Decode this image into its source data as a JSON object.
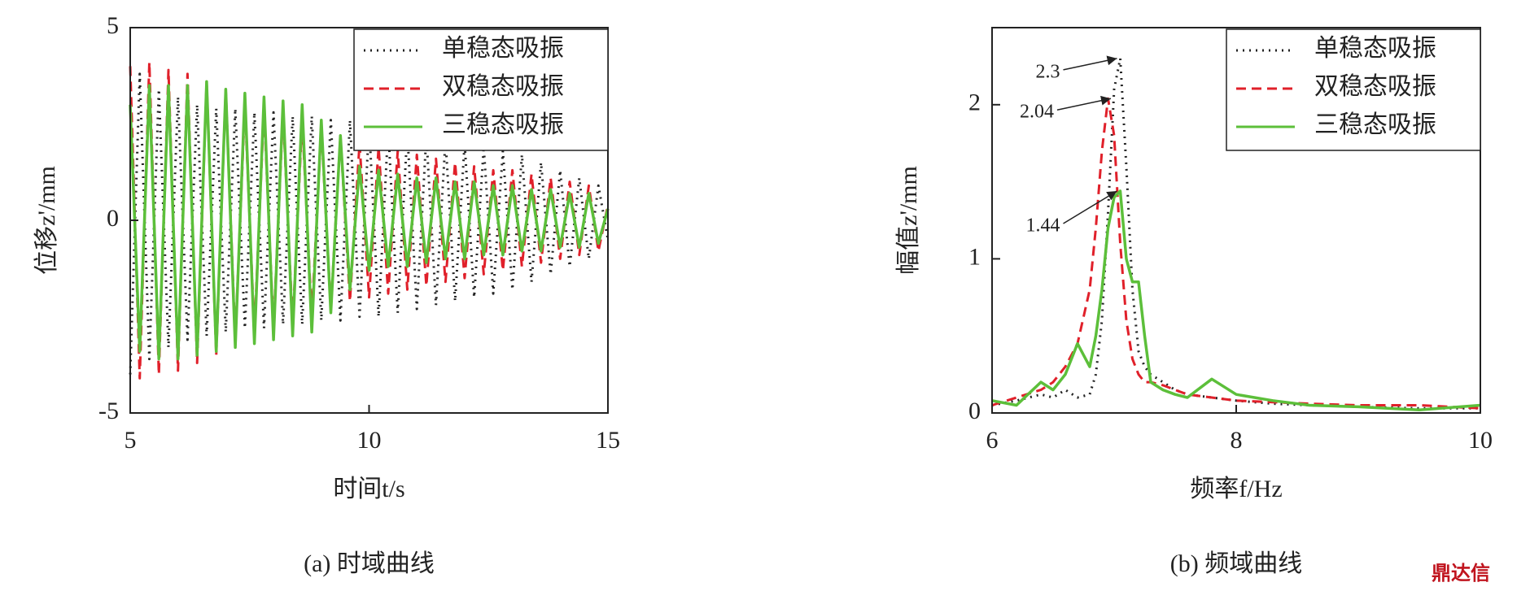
{
  "chart_data": [
    {
      "type": "line",
      "caption": "(a) 时域曲线",
      "xlabel": "时间t/s",
      "ylabel": "位移z'/mm",
      "xlim": [
        5,
        15
      ],
      "xticks": [
        5,
        10,
        15
      ],
      "ylim": [
        -5,
        5
      ],
      "yticks": [
        -5,
        0,
        5
      ],
      "legend": "upper right",
      "x": [
        5,
        5.2,
        5.4,
        5.6,
        5.8,
        6,
        6.2,
        6.4,
        6.6,
        6.8,
        7,
        7.2,
        7.4,
        7.6,
        7.8,
        8,
        8.2,
        8.4,
        8.6,
        8.8,
        9,
        9.2,
        9.4,
        9.6,
        9.8,
        10,
        10.2,
        10.4,
        10.6,
        10.8,
        11,
        11.2,
        11.4,
        11.6,
        11.8,
        12,
        12.2,
        12.4,
        12.6,
        12.8,
        13,
        13.2,
        13.4,
        13.6,
        13.8,
        14,
        14.2,
        14.4,
        14.6,
        14.8,
        15
      ],
      "series": [
        {
          "name": "单稳态吸振",
          "color": "#222222",
          "dash": "dotted",
          "values": [
            -4.0,
            3.8,
            -3.6,
            3.4,
            -3.3,
            3.2,
            -3.1,
            3.0,
            -3.0,
            2.9,
            -2.9,
            2.9,
            -2.8,
            2.8,
            -2.8,
            2.8,
            -2.7,
            2.7,
            -2.7,
            2.7,
            -2.6,
            2.6,
            -2.6,
            2.6,
            -2.5,
            2.5,
            -2.5,
            2.4,
            -2.4,
            2.3,
            -2.3,
            2.2,
            -2.2,
            2.1,
            -2.1,
            2.0,
            -2.0,
            1.9,
            -1.9,
            1.8,
            -1.8,
            1.7,
            -1.6,
            1.5,
            -1.4,
            1.3,
            -1.2,
            1.1,
            -1.0,
            0.9,
            -0.5
          ]
        },
        {
          "name": "双稳态吸振",
          "color": "#e0202a",
          "dash": "dashed",
          "values": [
            4.0,
            -4.1,
            4.1,
            -4.0,
            3.9,
            -3.9,
            3.8,
            -3.7,
            3.6,
            -3.5,
            3.4,
            -3.1,
            3.0,
            -2.9,
            2.9,
            -2.8,
            2.8,
            -2.7,
            2.6,
            -2.5,
            2.4,
            -2.3,
            2.2,
            -2.1,
            2.0,
            -2.0,
            1.9,
            -1.9,
            1.8,
            -1.8,
            1.7,
            -1.7,
            1.6,
            -1.6,
            1.5,
            -1.5,
            1.4,
            -1.4,
            1.3,
            -1.3,
            1.3,
            -1.2,
            1.2,
            -1.1,
            1.1,
            -1.0,
            1.0,
            -0.9,
            0.9,
            -0.8,
            0.4
          ]
        },
        {
          "name": "三稳态吸振",
          "color": "#5cbf3a",
          "dash": "solid",
          "values": [
            3.0,
            -3.4,
            3.5,
            -3.6,
            3.5,
            -3.6,
            3.5,
            -3.5,
            3.6,
            -3.4,
            3.4,
            -3.3,
            3.3,
            -3.2,
            3.2,
            -3.1,
            3.1,
            -3.0,
            3.0,
            -2.9,
            2.6,
            -2.4,
            2.2,
            -1.8,
            1.4,
            -1.3,
            1.3,
            -1.2,
            1.2,
            -1.2,
            1.1,
            -1.1,
            1.1,
            -1.0,
            1.0,
            -1.0,
            1.0,
            -0.9,
            0.9,
            -0.9,
            0.9,
            -0.8,
            0.8,
            -0.8,
            0.8,
            -0.7,
            0.7,
            -0.7,
            0.7,
            -0.6,
            0.3
          ]
        }
      ]
    },
    {
      "type": "line",
      "caption": "(b) 频域曲线",
      "xlabel": "频率f/Hz",
      "ylabel": "幅值z'/mm",
      "xlim": [
        6,
        10
      ],
      "xticks": [
        6,
        8,
        10
      ],
      "ylim": [
        0,
        2.5
      ],
      "yticks": [
        0,
        1,
        2
      ],
      "legend": "upper right",
      "x": [
        6,
        6.2,
        6.4,
        6.5,
        6.6,
        6.7,
        6.8,
        6.85,
        6.9,
        6.95,
        7,
        7.05,
        7.1,
        7.15,
        7.2,
        7.25,
        7.3,
        7.4,
        7.5,
        7.6,
        7.8,
        8,
        8.3,
        8.6,
        9,
        9.5,
        10
      ],
      "series": [
        {
          "name": "单稳态吸振",
          "color": "#222222",
          "dash": "dotted",
          "values": [
            0.05,
            0.08,
            0.12,
            0.1,
            0.15,
            0.1,
            0.12,
            0.25,
            0.6,
            1.3,
            2.1,
            2.3,
            1.6,
            0.8,
            0.4,
            0.3,
            0.25,
            0.2,
            0.15,
            0.12,
            0.1,
            0.08,
            0.06,
            0.05,
            0.04,
            0.03,
            0.03
          ]
        },
        {
          "name": "双稳态吸振",
          "color": "#e0202a",
          "dash": "dashed",
          "values": [
            0.05,
            0.1,
            0.15,
            0.2,
            0.3,
            0.45,
            0.8,
            1.2,
            1.7,
            2.04,
            1.8,
            1.1,
            0.6,
            0.35,
            0.25,
            0.2,
            0.2,
            0.18,
            0.15,
            0.12,
            0.1,
            0.08,
            0.07,
            0.06,
            0.05,
            0.05,
            0.03
          ]
        },
        {
          "name": "三稳态吸振",
          "color": "#5cbf3a",
          "dash": "solid",
          "values": [
            0.08,
            0.05,
            0.2,
            0.15,
            0.25,
            0.45,
            0.3,
            0.5,
            0.8,
            1.2,
            1.4,
            1.44,
            1.0,
            0.85,
            0.85,
            0.5,
            0.2,
            0.15,
            0.12,
            0.1,
            0.22,
            0.12,
            0.08,
            0.05,
            0.04,
            0.02,
            0.05
          ]
        }
      ],
      "annotations": [
        {
          "text": "2.3",
          "x": 7.05,
          "y": 2.3
        },
        {
          "text": "2.04",
          "x": 7.0,
          "y": 2.04
        },
        {
          "text": "1.44",
          "x": 7.05,
          "y": 1.44
        }
      ]
    }
  ],
  "watermark": "鼎达信"
}
